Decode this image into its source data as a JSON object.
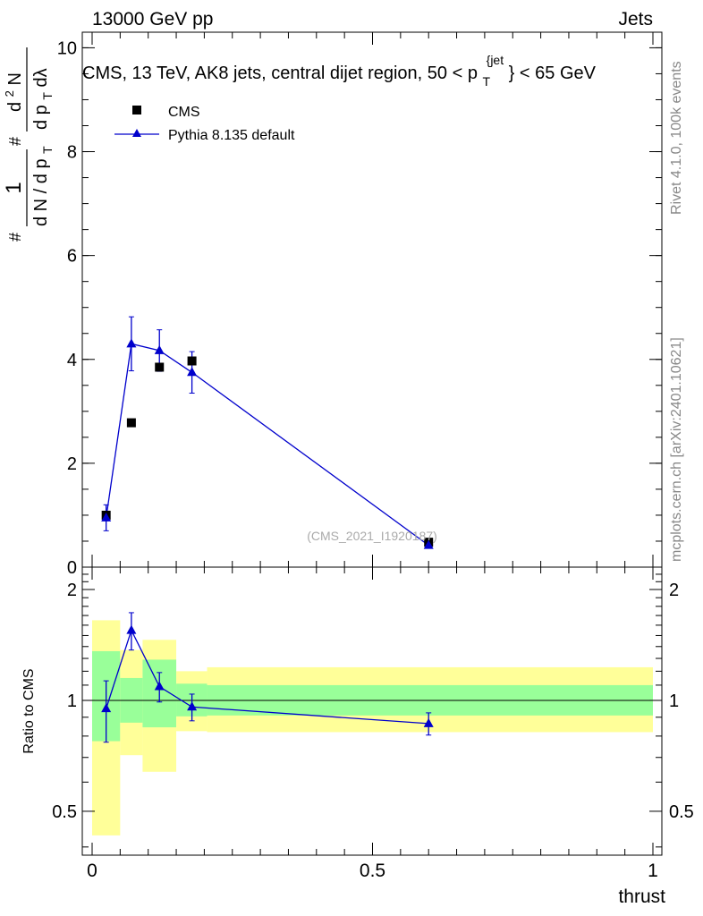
{
  "header": {
    "left": "13000 GeV pp",
    "right": "Jets"
  },
  "side_labels": {
    "rivet": "Rivet 4.1.0,  100k events",
    "mcplots": "mcplots.cern.ch [arXiv:2401.10621]"
  },
  "chart_data": [
    {
      "type": "scatter",
      "panel": "main",
      "title_main": "CMS, 13 TeV, AK8 jets, central dijet region, 50 <",
      "title_p": "p",
      "title_sub": "T",
      "title_sup": "{jet",
      "title_close": "}",
      "title_tail": "< 65 GeV",
      "ylabel": "1/dN/dpT·d²N/dpT dλ",
      "ylabel_parts": {
        "num_one": "1",
        "hash": "#",
        "den": "d N / d p",
        "den_sub": "T",
        "num2": "d",
        "num2_sup": "2",
        "num2_tail": "N",
        "den2": "d p",
        "den2_sub": "T",
        "den2_tail": " dλ"
      },
      "watermark": "(CMS_2021_I1920187)",
      "xlim": [
        0,
        1
      ],
      "ylim": [
        0,
        10.3
      ],
      "yticks": [
        0,
        2,
        4,
        6,
        8,
        10
      ],
      "ytick_labels": [
        "0",
        "2",
        "4",
        "6",
        "8",
        "10"
      ],
      "legend": [
        {
          "label": "CMS",
          "marker": "square",
          "color": "#000000"
        },
        {
          "label": "Pythia 8.135 default",
          "marker": "triangle",
          "color": "#0000cc"
        }
      ],
      "series": [
        {
          "name": "CMS",
          "x": [
            0.025,
            0.07,
            0.12,
            0.178,
            0.6
          ],
          "y": [
            1.0,
            2.78,
            3.85,
            3.97,
            0.48
          ],
          "color": "#000000"
        },
        {
          "name": "Pythia 8.135 default",
          "x": [
            0.025,
            0.07,
            0.12,
            0.178,
            0.6
          ],
          "y": [
            0.95,
            4.3,
            4.17,
            3.75,
            0.42
          ],
          "yerr": [
            0.25,
            0.52,
            0.4,
            0.4,
            0.03
          ],
          "color": "#0000cc"
        }
      ]
    },
    {
      "type": "line",
      "panel": "ratio",
      "ylabel": "Ratio to CMS",
      "xlabel": "thrust",
      "xlim": [
        0,
        1
      ],
      "ylim": [
        0.38,
        2.3
      ],
      "yscale": "log",
      "xticks": [
        0,
        0.5,
        1
      ],
      "xtick_labels": [
        "0",
        "0.5",
        "1"
      ],
      "yticks": [
        0.5,
        1,
        2
      ],
      "ytick_labels": [
        "0.5",
        "1",
        "2"
      ],
      "bands": [
        {
          "x0": 0.0,
          "x1": 0.05,
          "inner": [
            0.775,
            1.36
          ],
          "outer": [
            0.43,
            1.65
          ]
        },
        {
          "x0": 0.05,
          "x1": 0.09,
          "inner": [
            0.87,
            1.15
          ],
          "outer": [
            0.71,
            1.37
          ]
        },
        {
          "x0": 0.09,
          "x1": 0.15,
          "inner": [
            0.845,
            1.29
          ],
          "outer": [
            0.64,
            1.46
          ]
        },
        {
          "x0": 0.15,
          "x1": 0.205,
          "inner": [
            0.905,
            1.11
          ],
          "outer": [
            0.825,
            1.2
          ]
        },
        {
          "x0": 0.205,
          "x1": 1.0,
          "inner": [
            0.91,
            1.1
          ],
          "outer": [
            0.82,
            1.23
          ]
        }
      ],
      "series": [
        {
          "name": "Pythia 8.135 default",
          "x": [
            0.025,
            0.07,
            0.12,
            0.178,
            0.6
          ],
          "y": [
            0.95,
            1.55,
            1.09,
            0.96,
            0.865
          ],
          "yerr": [
            0.18,
            0.18,
            0.1,
            0.08,
            0.06
          ],
          "color": "#0000cc"
        }
      ],
      "band_colors": {
        "inner": "#99ff99",
        "outer": "#ffff99"
      }
    }
  ]
}
